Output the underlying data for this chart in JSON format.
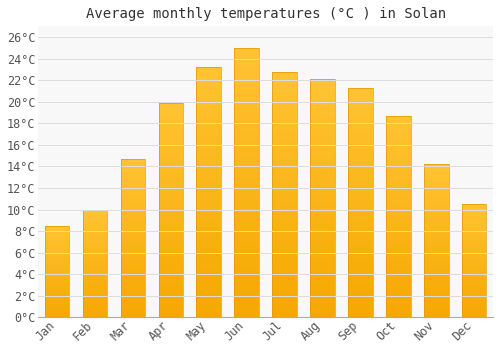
{
  "title": "Average monthly temperatures (°C ) in Solan",
  "months": [
    "Jan",
    "Feb",
    "Mar",
    "Apr",
    "May",
    "Jun",
    "Jul",
    "Aug",
    "Sep",
    "Oct",
    "Nov",
    "Dec"
  ],
  "values": [
    8.5,
    10.0,
    14.7,
    19.9,
    23.2,
    25.0,
    22.8,
    22.1,
    21.3,
    18.7,
    14.2,
    10.5
  ],
  "bar_color_top": "#FFC333",
  "bar_color_bottom": "#F5A800",
  "bar_edge_color": "#E09800",
  "background_color": "#FFFFFF",
  "plot_bg_color": "#F8F8F8",
  "grid_color": "#DDDDDD",
  "text_color": "#555555",
  "title_color": "#333333",
  "ylim": [
    0,
    27
  ],
  "yticks": [
    0,
    2,
    4,
    6,
    8,
    10,
    12,
    14,
    16,
    18,
    20,
    22,
    24,
    26
  ],
  "title_fontsize": 10,
  "tick_fontsize": 8.5,
  "bar_width": 0.65
}
